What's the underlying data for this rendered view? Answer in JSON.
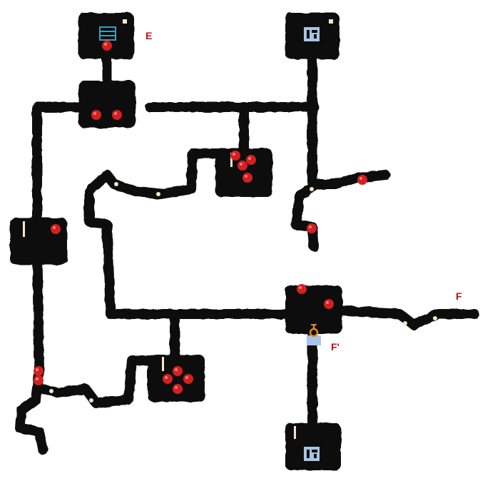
{
  "map": {
    "labels": {
      "e": "E",
      "f": "F",
      "f_prime": "F'"
    },
    "colors": {
      "background": "#ffffff",
      "path": "#0a0a0a",
      "room": "#0a0a0a",
      "node": "#d42020",
      "node_highlight": "#f08080",
      "label": "#c01010",
      "icon_blue": "#a8c4e8",
      "icon_teal": "#3aa0b8",
      "key_orange": "#e08a1a",
      "marker": "#f6e6c8"
    },
    "rooms": [
      {
        "id": "room-top-left",
        "node_count": 1,
        "icon": "chest-icon"
      },
      {
        "id": "room-upper-left-hub",
        "node_count": 2
      },
      {
        "id": "room-top-right",
        "node_count": 0,
        "icon": "door-icon"
      },
      {
        "id": "room-center-top",
        "node_count": 4
      },
      {
        "id": "room-left",
        "node_count": 1
      },
      {
        "id": "room-right-hub",
        "node_count": 2,
        "icon": "key-icon"
      },
      {
        "id": "room-bottom-center",
        "node_count": 4
      },
      {
        "id": "room-bottom-right",
        "node_count": 0,
        "icon": "door-icon"
      }
    ]
  }
}
